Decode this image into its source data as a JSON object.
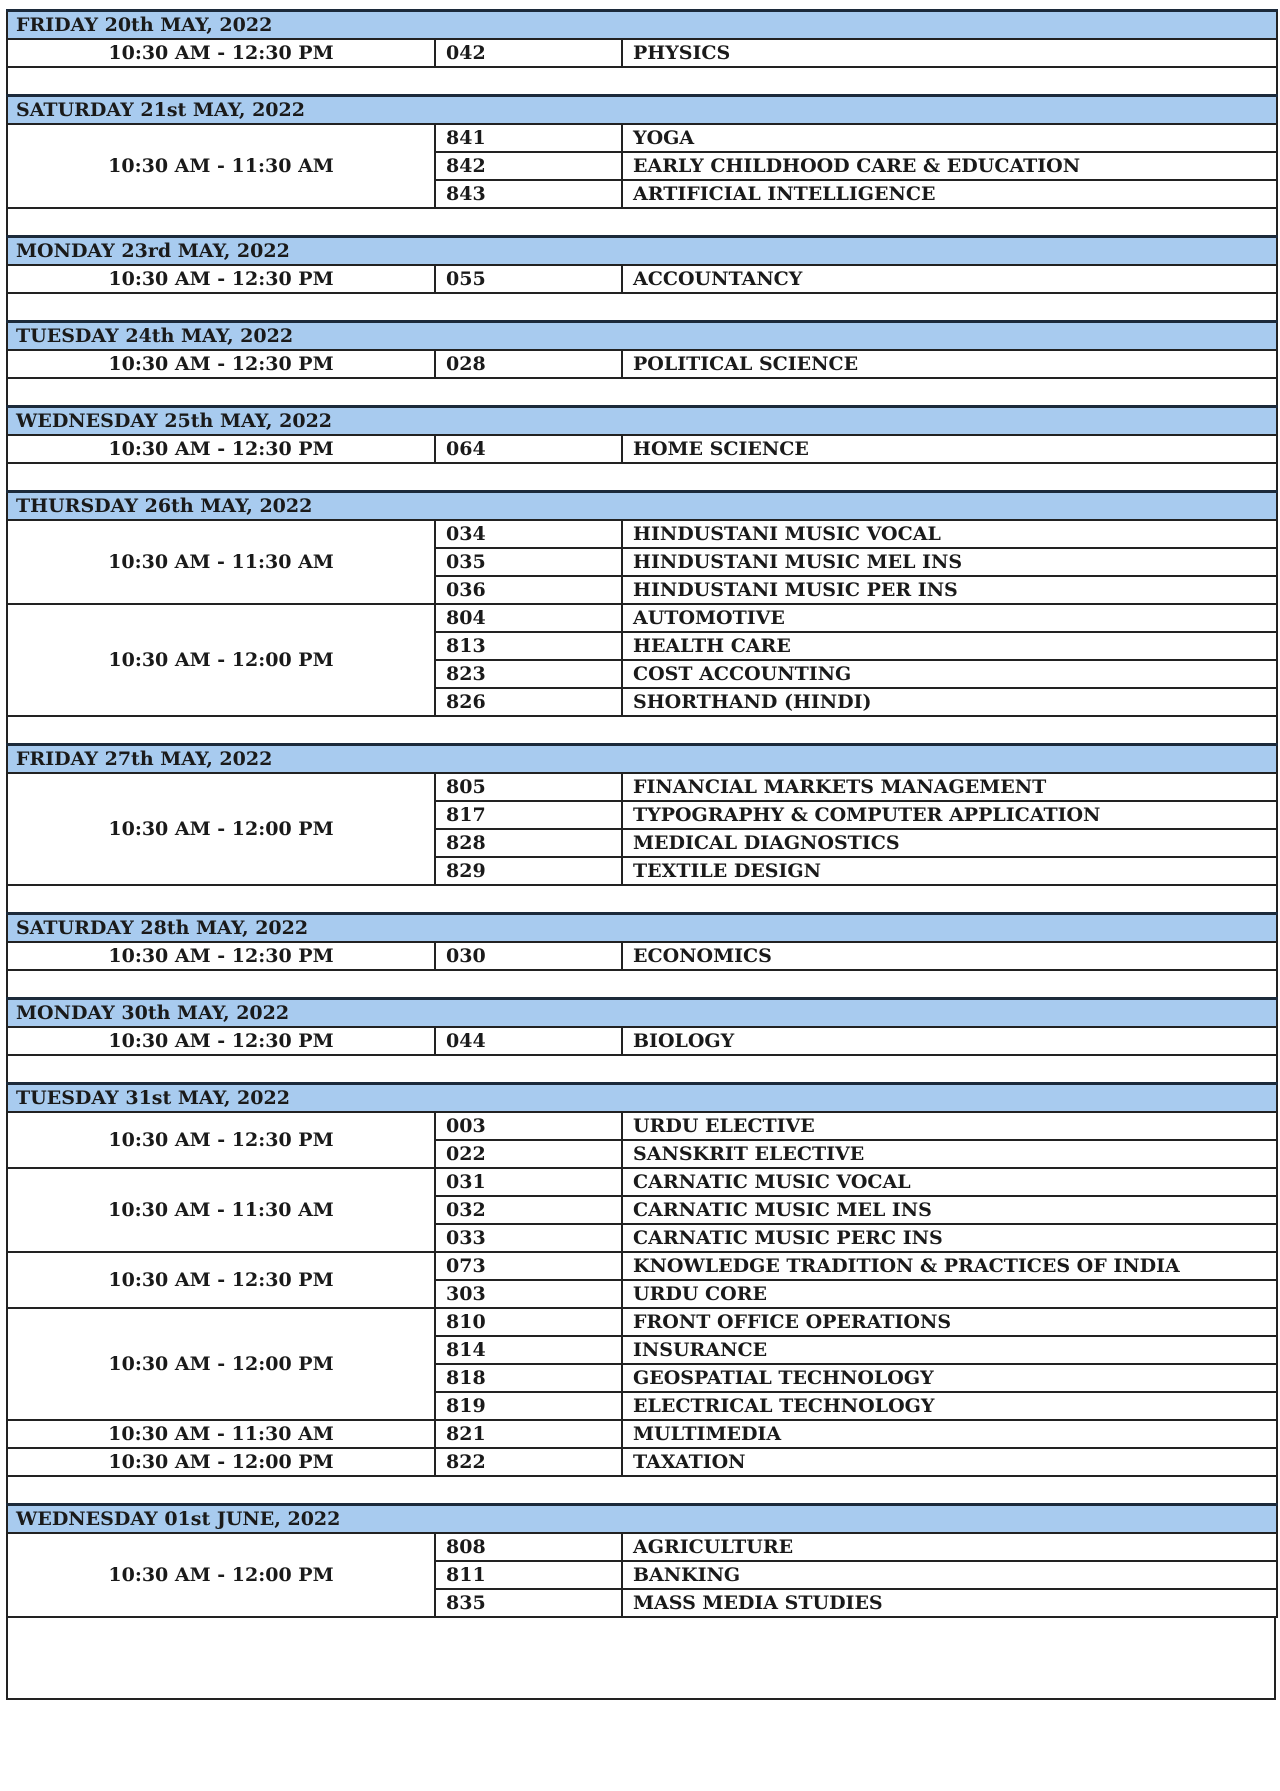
{
  "schedule": [
    {
      "date": "FRIDAY 20th MAY, 2022",
      "slots": [
        {
          "time": "10:30 AM  - 12:30 PM",
          "papers": [
            {
              "code": "042",
              "subject": "PHYSICS"
            }
          ]
        }
      ]
    },
    {
      "date": "SATURDAY 21st MAY, 2022",
      "slots": [
        {
          "time": "10:30 AM  - 11:30 AM",
          "papers": [
            {
              "code": "841",
              "subject": "YOGA"
            },
            {
              "code": "842",
              "subject": "EARLY CHILDHOOD CARE & EDUCATION"
            },
            {
              "code": "843",
              "subject": "ARTIFICIAL INTELLIGENCE"
            }
          ]
        }
      ]
    },
    {
      "date": "MONDAY 23rd MAY, 2022",
      "slots": [
        {
          "time": "10:30 AM  - 12:30 PM",
          "papers": [
            {
              "code": "055",
              "subject": "ACCOUNTANCY"
            }
          ]
        }
      ]
    },
    {
      "date": "TUESDAY 24th MAY, 2022",
      "slots": [
        {
          "time": "10:30 AM  - 12:30 PM",
          "papers": [
            {
              "code": "028",
              "subject": "POLITICAL SCIENCE"
            }
          ]
        }
      ]
    },
    {
      "date": "WEDNESDAY 25th MAY, 2022",
      "slots": [
        {
          "time": "10:30 AM  - 12:30 PM",
          "papers": [
            {
              "code": "064",
              "subject": "HOME SCIENCE"
            }
          ]
        }
      ]
    },
    {
      "date": "THURSDAY 26th MAY, 2022",
      "slots": [
        {
          "time": "10:30 AM  - 11:30 AM",
          "papers": [
            {
              "code": "034",
              "subject": "HINDUSTANI MUSIC VOCAL"
            },
            {
              "code": "035",
              "subject": "HINDUSTANI MUSIC MEL INS"
            },
            {
              "code": "036",
              "subject": "HINDUSTANI MUSIC PER INS"
            }
          ]
        },
        {
          "time": "10:30 AM  - 12:00 PM",
          "papers": [
            {
              "code": "804",
              "subject": "AUTOMOTIVE"
            },
            {
              "code": "813",
              "subject": "HEALTH CARE"
            },
            {
              "code": "823",
              "subject": "COST ACCOUNTING"
            },
            {
              "code": "826",
              "subject": "SHORTHAND (HINDI)"
            }
          ]
        }
      ]
    },
    {
      "date": "FRIDAY 27th MAY, 2022",
      "slots": [
        {
          "time": "10:30 AM - 12:00 PM",
          "papers": [
            {
              "code": "805",
              "subject": "FINANCIAL MARKETS MANAGEMENT"
            },
            {
              "code": "817",
              "subject": "TYPOGRAPHY & COMPUTER APPLICATION"
            },
            {
              "code": "828",
              "subject": "MEDICAL DIAGNOSTICS"
            },
            {
              "code": "829",
              "subject": "TEXTILE DESIGN"
            }
          ]
        }
      ]
    },
    {
      "date": "SATURDAY 28th MAY, 2022",
      "slots": [
        {
          "time": "10:30 AM  - 12:30 PM",
          "papers": [
            {
              "code": "030",
              "subject": "ECONOMICS"
            }
          ]
        }
      ]
    },
    {
      "date": "MONDAY 30th MAY, 2022",
      "slots": [
        {
          "time": "10:30 AM - 12:30 PM",
          "papers": [
            {
              "code": "044",
              "subject": "BIOLOGY"
            }
          ]
        }
      ]
    },
    {
      "date": "TUESDAY 31st MAY, 2022",
      "slots": [
        {
          "time": "10:30 AM  - 12:30 PM",
          "papers": [
            {
              "code": "003",
              "subject": "URDU ELECTIVE"
            },
            {
              "code": "022",
              "subject": "SANSKRIT ELECTIVE"
            }
          ]
        },
        {
          "time": "10:30 AM  - 11:30 AM",
          "papers": [
            {
              "code": "031",
              "subject": "CARNATIC MUSIC VOCAL"
            },
            {
              "code": "032",
              "subject": "CARNATIC MUSIC MEL INS"
            },
            {
              "code": "033",
              "subject": "CARNATIC MUSIC PERC INS"
            }
          ]
        },
        {
          "time": "10:30 AM - 12:30 PM",
          "papers": [
            {
              "code": "073",
              "subject": "KNOWLEDGE TRADITION & PRACTICES OF INDIA"
            },
            {
              "code": "303",
              "subject": "URDU CORE"
            }
          ]
        },
        {
          "time": "10:30 AM - 12:00 PM",
          "papers": [
            {
              "code": "810",
              "subject": "FRONT OFFICE OPERATIONS"
            },
            {
              "code": "814",
              "subject": "INSURANCE"
            },
            {
              "code": "818",
              "subject": "GEOSPATIAL TECHNOLOGY"
            },
            {
              "code": "819",
              "subject": "ELECTRICAL TECHNOLOGY"
            }
          ]
        },
        {
          "time": "10:30 AM - 11:30 AM",
          "papers": [
            {
              "code": "821",
              "subject": "MULTIMEDIA"
            }
          ]
        },
        {
          "time": "10:30 AM - 12:00 PM",
          "papers": [
            {
              "code": "822",
              "subject": "TAXATION"
            }
          ]
        }
      ]
    },
    {
      "date": "WEDNESDAY 01st JUNE, 2022",
      "slots": [
        {
          "time": "10:30 AM  - 12:00 PM",
          "papers": [
            {
              "code": "808",
              "subject": "AGRICULTURE"
            },
            {
              "code": "811",
              "subject": "BANKING"
            },
            {
              "code": "835",
              "subject": "MASS MEDIA STUDIES"
            }
          ]
        }
      ]
    }
  ],
  "colors": {
    "header_fill": "#a8cbef",
    "rule": "#222222"
  }
}
